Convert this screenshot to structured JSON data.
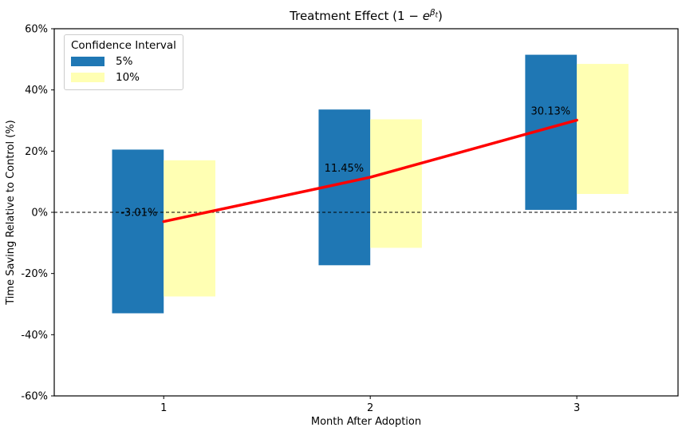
{
  "title": {
    "part1": "Treatment Effect (1 − ",
    "e_sym": "e",
    "beta_sym": "β",
    "t_sym": "t",
    "part2": ")"
  },
  "chart_data": {
    "type": "bar",
    "title": "Treatment Effect (1 − e^(β_t))",
    "xlabel": "Month After Adoption",
    "ylabel": "Time Saving Relative to Control (%)",
    "xlim": [
      0.47,
      3.49
    ],
    "ylim": [
      -60,
      60
    ],
    "grid": false,
    "yticks": {
      "values": [
        60,
        40,
        20,
        0,
        -20,
        -40,
        -60
      ],
      "labels": [
        "60%",
        "40%",
        "20%",
        "0%",
        "-20%",
        "-40%",
        "-60%"
      ]
    },
    "xticks": {
      "values": [
        1,
        2,
        3
      ],
      "labels": [
        "1",
        "2",
        "3"
      ]
    },
    "bar_width": 0.25,
    "zero_line": {
      "value": 0,
      "color": "#000000",
      "style": "dashed"
    },
    "series": [
      {
        "name": "5%",
        "color": "#1f77b4",
        "offset": -0.125,
        "intervals": [
          {
            "x": 1,
            "low": -33.0,
            "high": 20.5
          },
          {
            "x": 2,
            "low": -17.3,
            "high": 33.6
          },
          {
            "x": 3,
            "low": 0.8,
            "high": 51.5
          }
        ]
      },
      {
        "name": "10%",
        "color": "#ffffb3",
        "offset": 0.125,
        "intervals": [
          {
            "x": 1,
            "low": -27.5,
            "high": 17.0
          },
          {
            "x": 2,
            "low": -11.6,
            "high": 30.4
          },
          {
            "x": 3,
            "low": 6.0,
            "high": 48.5
          }
        ]
      }
    ],
    "line": {
      "name": "point-estimate",
      "color": "#ff0000",
      "width": 3.5,
      "points": [
        {
          "x": 1,
          "y": -3.01,
          "label": "-3.01%"
        },
        {
          "x": 2,
          "y": 11.45,
          "label": "11.45%"
        },
        {
          "x": 3,
          "y": 30.13,
          "label": "30.13%"
        }
      ]
    },
    "legend": {
      "title": "Confidence Interval",
      "position": "upper left",
      "items": [
        {
          "label": "5%",
          "color": "#1f77b4"
        },
        {
          "label": "10%",
          "color": "#ffffb3"
        }
      ]
    }
  }
}
